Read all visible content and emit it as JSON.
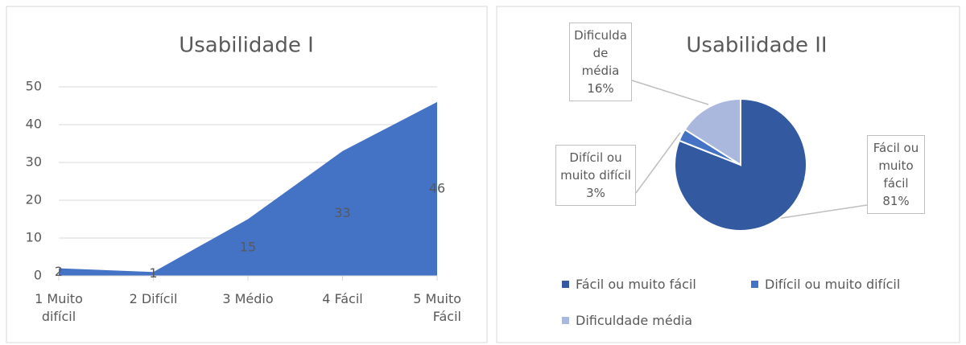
{
  "chart_data": [
    {
      "type": "area",
      "title": "Usabilidade I",
      "categories": [
        "1 Muito difícil",
        "2 Difícil",
        "3 Médio",
        "4 Fácil",
        "5 Muito Fácil"
      ],
      "values": [
        2,
        1,
        15,
        33,
        46
      ],
      "color": "#4472c4",
      "ylim": [
        0,
        50
      ],
      "yticks": [
        0,
        10,
        20,
        30,
        40,
        50
      ],
      "grid": true
    },
    {
      "type": "pie",
      "title": "Usabilidade II",
      "categories": [
        "Fácil ou muito fácil",
        "Difícil ou muito difícil",
        "Dificuldade média"
      ],
      "values": [
        81,
        3,
        16
      ],
      "value_labels": [
        "81%",
        "3%",
        "16%"
      ],
      "colors": [
        "#335aa1",
        "#4472c4",
        "#a9b8dc"
      ],
      "legend": "bottom"
    }
  ]
}
